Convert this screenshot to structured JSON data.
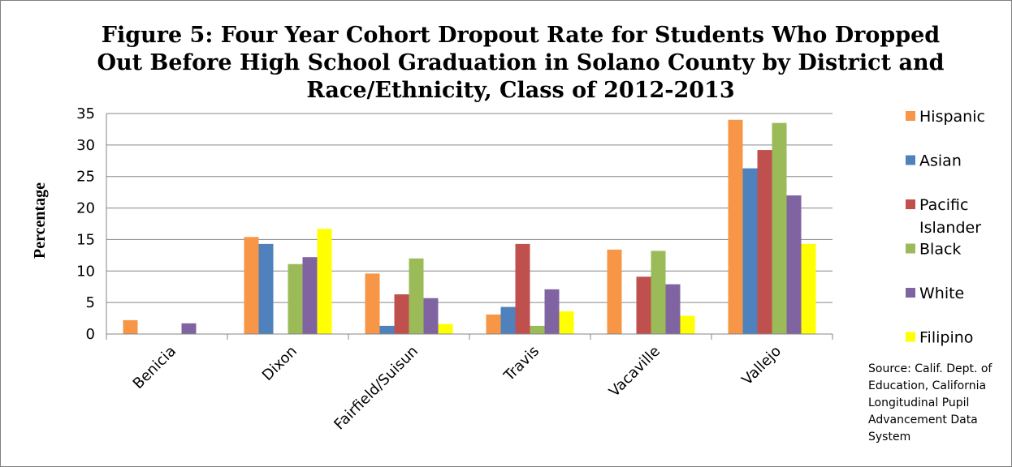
{
  "chart_data": {
    "type": "bar",
    "title_lines": [
      "Figure 5: Four Year Cohort Dropout Rate for Students Who Dropped",
      "Out Before High School Graduation in Solano County by District and",
      "Race/Ethnicity, Class of 2012-2013"
    ],
    "ylabel": "Percentage",
    "xlabel": "",
    "ylim": [
      0,
      35
    ],
    "yticks": [
      "0",
      "5",
      "10",
      "15",
      "20",
      "25",
      "30",
      "35"
    ],
    "grid": true,
    "legend_position": "right",
    "categories": [
      "Benicia",
      "Dixon",
      "Fairfield/Suisun",
      "Travis",
      "Vacaville",
      "Vallejo"
    ],
    "series": [
      {
        "name": "Hispanic",
        "color": "#f79646",
        "values": [
          2.2,
          15.4,
          9.6,
          3.1,
          13.4,
          34.0
        ]
      },
      {
        "name": "Asian",
        "color": "#4f81bd",
        "values": [
          0,
          14.3,
          1.3,
          4.3,
          0,
          26.3
        ]
      },
      {
        "name": "Pacific Islander",
        "color": "#c0504d",
        "values": [
          0,
          0,
          6.3,
          14.3,
          9.1,
          29.2
        ],
        "legend_lines": [
          "Pacific",
          "Islander"
        ]
      },
      {
        "name": "Black",
        "color": "#9bbb59",
        "values": [
          0,
          11.1,
          12.0,
          1.3,
          13.2,
          33.5
        ]
      },
      {
        "name": "White",
        "color": "#8064a2",
        "values": [
          1.7,
          12.2,
          5.7,
          7.1,
          7.9,
          22.0
        ]
      },
      {
        "name": "Filipino",
        "color": "#ffff00",
        "values": [
          0,
          16.7,
          1.6,
          3.6,
          2.9,
          14.3
        ]
      }
    ],
    "source_lines": [
      "Source:  Calif. Dept. of",
      "Education, California",
      "Longitudinal Pupil",
      "Advancement Data",
      "System"
    ]
  }
}
